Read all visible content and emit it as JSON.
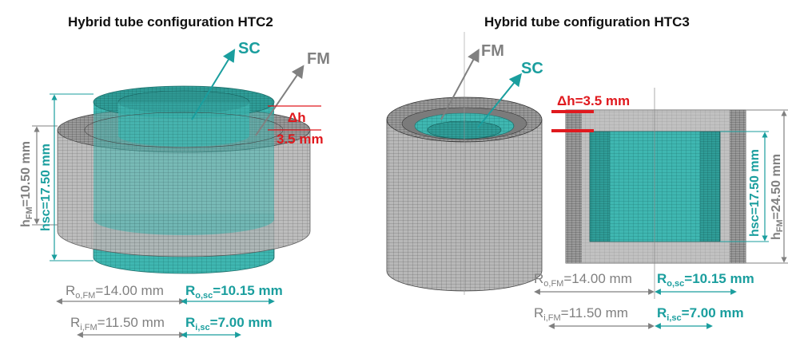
{
  "panels": [
    {
      "title": "Hybrid tube configuration HTC2",
      "sc_label": "SC",
      "fm_label": "FM",
      "delta_h_label": "Δh",
      "delta_h_value": "3.5 mm",
      "h_fm": {
        "base": "h",
        "sub": "FM",
        "value": "=10.50 mm"
      },
      "h_sc": {
        "text": "hsc=17.50 mm"
      },
      "r_o_fm": {
        "base": "R",
        "sub": "o,FM",
        "value": "=14.00 mm"
      },
      "r_o_sc": {
        "base": "R",
        "sub": "o,sc",
        "value": "=10.15 mm"
      },
      "r_i_fm": {
        "base": "R",
        "sub": "i,FM",
        "value": "=11.50 mm"
      },
      "r_i_sc": {
        "base": "R",
        "sub": "i,sc",
        "value": "=7.00 mm"
      }
    },
    {
      "title": "Hybrid tube configuration HTC3",
      "sc_label": "SC",
      "fm_label": "FM",
      "delta_h_label": "Δh=3.5 mm",
      "h_fm": {
        "base": "h",
        "sub": "FM",
        "value": "=24.50 mm"
      },
      "h_sc": {
        "text": "hsc=17.50 mm"
      },
      "r_o_fm": {
        "base": "R",
        "sub": "o,FM",
        "value": "=14.00 mm"
      },
      "r_o_sc": {
        "base": "R",
        "sub": "o,sc",
        "value": "=10.15 mm"
      },
      "r_i_fm": {
        "base": "R",
        "sub": "i,FM",
        "value": "=11.50 mm"
      },
      "r_i_sc": {
        "base": "R",
        "sub": "i,sc",
        "value": "=7.00 mm"
      }
    }
  ],
  "colors": {
    "fm_gray": "#8a8a8a",
    "sc_teal": "#1a9e9e",
    "delta_red": "#e0191e",
    "mesh_teal_fill": "#3fb7b1",
    "mesh_gray_fill": "#b5b5b5"
  }
}
